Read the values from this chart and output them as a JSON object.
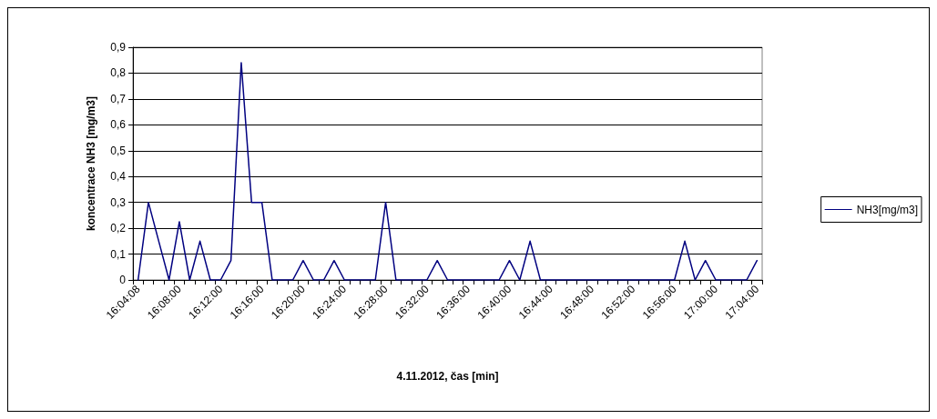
{
  "chart_data": {
    "type": "line",
    "xlabel": "4.11.2012, čas [min]",
    "ylabel": "koncentrace NH3 [mg/m3]",
    "categories": [
      "16:04:08",
      null,
      null,
      null,
      "16:08:00",
      null,
      null,
      null,
      "16:12:00",
      null,
      null,
      null,
      "16:16:00",
      null,
      null,
      null,
      "16:20:00",
      null,
      null,
      null,
      "16:24:00",
      null,
      null,
      null,
      "16:28:00",
      null,
      null,
      null,
      "16:32:00",
      null,
      null,
      null,
      "16:36:00",
      null,
      null,
      null,
      "16:40:00",
      null,
      null,
      null,
      "16:44:00",
      null,
      null,
      null,
      "16:48:00",
      null,
      null,
      null,
      "16:52:00",
      null,
      null,
      null,
      "16:56:00",
      null,
      null,
      null,
      "17:00:00",
      null,
      null,
      null,
      "17:04:00"
    ],
    "series": [
      {
        "name": "NH3[mg/m3]",
        "color": "#000080",
        "values": [
          0,
          0.3,
          0.15,
          0,
          0.225,
          0,
          0.15,
          0,
          0,
          0.075,
          0.84,
          0.3,
          0.3,
          0,
          0,
          0,
          0.075,
          0,
          0,
          0.075,
          0,
          0,
          0,
          0,
          0.3,
          0,
          0,
          0,
          0,
          0.075,
          0,
          0,
          0,
          0,
          0,
          0,
          0.075,
          0,
          0.15,
          0,
          0,
          0,
          0,
          0,
          0,
          0,
          0,
          0,
          0,
          0,
          0,
          0,
          0,
          0.15,
          0,
          0.075,
          0,
          0,
          0,
          0,
          0.075
        ]
      }
    ],
    "ylim": [
      0,
      0.9
    ],
    "yticks": [
      0,
      {
        "value": 0.1,
        "label": "0,1"
      },
      {
        "value": 0.2,
        "label": "0,2"
      },
      {
        "value": 0.3,
        "label": "0,3"
      },
      {
        "value": 0.4,
        "label": "0,4"
      },
      {
        "value": 0.5,
        "label": "0,5"
      },
      {
        "value": 0.6,
        "label": "0,6"
      },
      {
        "value": 0.7,
        "label": "0,7"
      },
      {
        "value": 0.8,
        "label": "0,8"
      },
      {
        "value": 0.9,
        "label": "0,9"
      }
    ],
    "grid": "y",
    "legend": "right",
    "marker": "none",
    "line_style": "solid"
  }
}
